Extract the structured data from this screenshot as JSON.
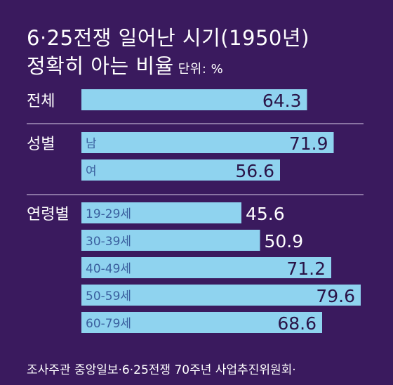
{
  "title": {
    "line1": "6·25전쟁 일어난 시기(1950년)",
    "line2": "정확히 아는 비율",
    "unit": "단위: %"
  },
  "colors": {
    "background": "#3a1a5e",
    "bar": "#8fd3ef",
    "text_light": "#ffffff",
    "text_dark": "#2a1448",
    "label_dark": "#3a5f9e"
  },
  "chart_data": {
    "type": "bar",
    "orientation": "horizontal",
    "groups": [
      {
        "name": "전체",
        "rows": [
          {
            "label": "",
            "value": 64.3
          }
        ]
      },
      {
        "name": "성별",
        "rows": [
          {
            "label": "남",
            "value": 71.9
          },
          {
            "label": "여",
            "value": 56.6
          }
        ]
      },
      {
        "name": "연령별",
        "rows": [
          {
            "label": "19-29세",
            "value": 45.6
          },
          {
            "label": "30-39세",
            "value": 50.9
          },
          {
            "label": "40-49세",
            "value": 71.2
          },
          {
            "label": "50-59세",
            "value": 79.6
          },
          {
            "label": "60-79세",
            "value": 68.6
          }
        ]
      }
    ],
    "unit": "%"
  },
  "footer": {
    "line1": "조사주관  중앙일보·6·25전쟁 70주년 사업추진위원회·"
  }
}
